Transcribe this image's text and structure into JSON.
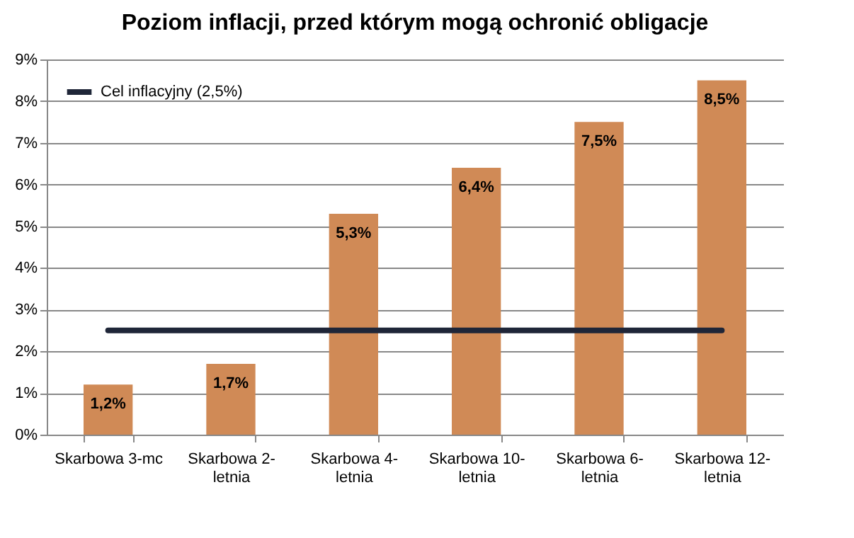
{
  "chart_data": {
    "type": "bar",
    "title": "Poziom inflacji, przed którym mogą ochronić obligacje",
    "categories": [
      "Skarbowa 3-mc",
      "Skarbowa 2-letnia",
      "Skarbowa 4-letnia",
      "Skarbowa 10-letnia",
      "Skarbowa 6-letnia",
      "Skarbowa 12-letnia"
    ],
    "series": [
      {
        "color": "#d08a56",
        "values": [
          1.2,
          1.7,
          5.3,
          6.4,
          7.5,
          8.5
        ],
        "value_labels": [
          "1,2%",
          "1,7%",
          "5,3%",
          "6,4%",
          "7,5%",
          "8,5%"
        ]
      },
      {
        "type": "line",
        "name": "Cel inflacyjny (2,5%)",
        "color": "#1f2638",
        "values": [
          2.5,
          2.5,
          2.5,
          2.5,
          2.5,
          2.5
        ]
      }
    ],
    "ylim": [
      0,
      9
    ],
    "yticks": [
      {
        "value": 0,
        "label": "0%"
      },
      {
        "value": 1,
        "label": "1%"
      },
      {
        "value": 2,
        "label": "2%"
      },
      {
        "value": 3,
        "label": "3%"
      },
      {
        "value": 4,
        "label": "4%"
      },
      {
        "value": 5,
        "label": "5%"
      },
      {
        "value": 6,
        "label": "6%"
      },
      {
        "value": 7,
        "label": "7%"
      },
      {
        "value": 8,
        "label": "8%"
      },
      {
        "value": 9,
        "label": "9%"
      }
    ],
    "grid": "y",
    "legend": "top left",
    "marker": "none",
    "line_style": "solid"
  }
}
